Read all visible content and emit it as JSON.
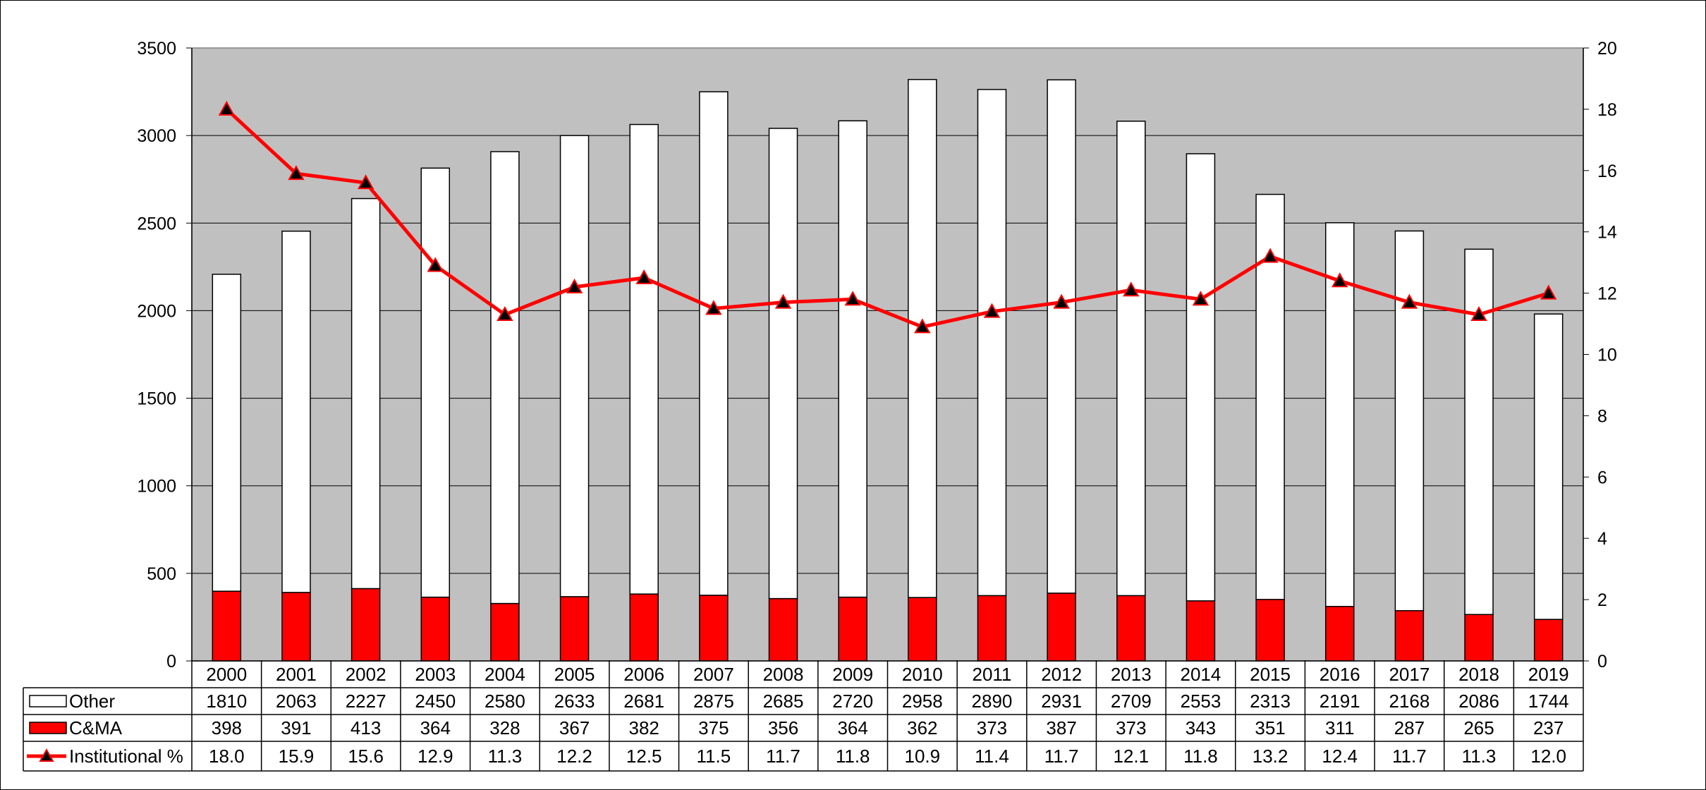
{
  "chart_data": {
    "type": "bar",
    "stacked": true,
    "categories": [
      "2000",
      "2001",
      "2002",
      "2003",
      "2004",
      "2005",
      "2006",
      "2007",
      "2008",
      "2009",
      "2010",
      "2011",
      "2012",
      "2013",
      "2014",
      "2015",
      "2016",
      "2017",
      "2018",
      "2019"
    ],
    "series": [
      {
        "name": "Other",
        "kind": "bar",
        "axis": "left",
        "color": "#ffffff",
        "values": [
          1810,
          2063,
          2227,
          2450,
          2580,
          2633,
          2681,
          2875,
          2685,
          2720,
          2958,
          2890,
          2931,
          2709,
          2553,
          2313,
          2191,
          2168,
          2086,
          1744
        ]
      },
      {
        "name": "C&MA",
        "kind": "bar",
        "axis": "left",
        "color": "#ff0000",
        "values": [
          398,
          391,
          413,
          364,
          328,
          367,
          382,
          375,
          356,
          364,
          362,
          373,
          387,
          373,
          343,
          351,
          311,
          287,
          265,
          237
        ]
      },
      {
        "name": "Institutional %",
        "kind": "line",
        "axis": "right",
        "color": "#ff0000",
        "marker": "triangle",
        "values": [
          "18.0",
          "15.9",
          "15.6",
          "12.9",
          "11.3",
          "12.2",
          "12.5",
          "11.5",
          "11.7",
          "11.8",
          "10.9",
          "11.4",
          "11.7",
          "12.1",
          "11.8",
          "13.2",
          "12.4",
          "11.7",
          "11.3",
          "12.0"
        ]
      }
    ],
    "y_left": {
      "min": 0,
      "max": 3500,
      "ticks": [
        "0",
        "500",
        "1000",
        "1500",
        "2000",
        "2500",
        "3000",
        "3500"
      ]
    },
    "y_right": {
      "min": 0,
      "max": 20,
      "ticks": [
        "0",
        "2",
        "4",
        "6",
        "8",
        "10",
        "12",
        "14",
        "16",
        "18",
        "20"
      ]
    },
    "plot_background": "#c0c0c0",
    "grid": true,
    "legend": "data-table-below"
  }
}
